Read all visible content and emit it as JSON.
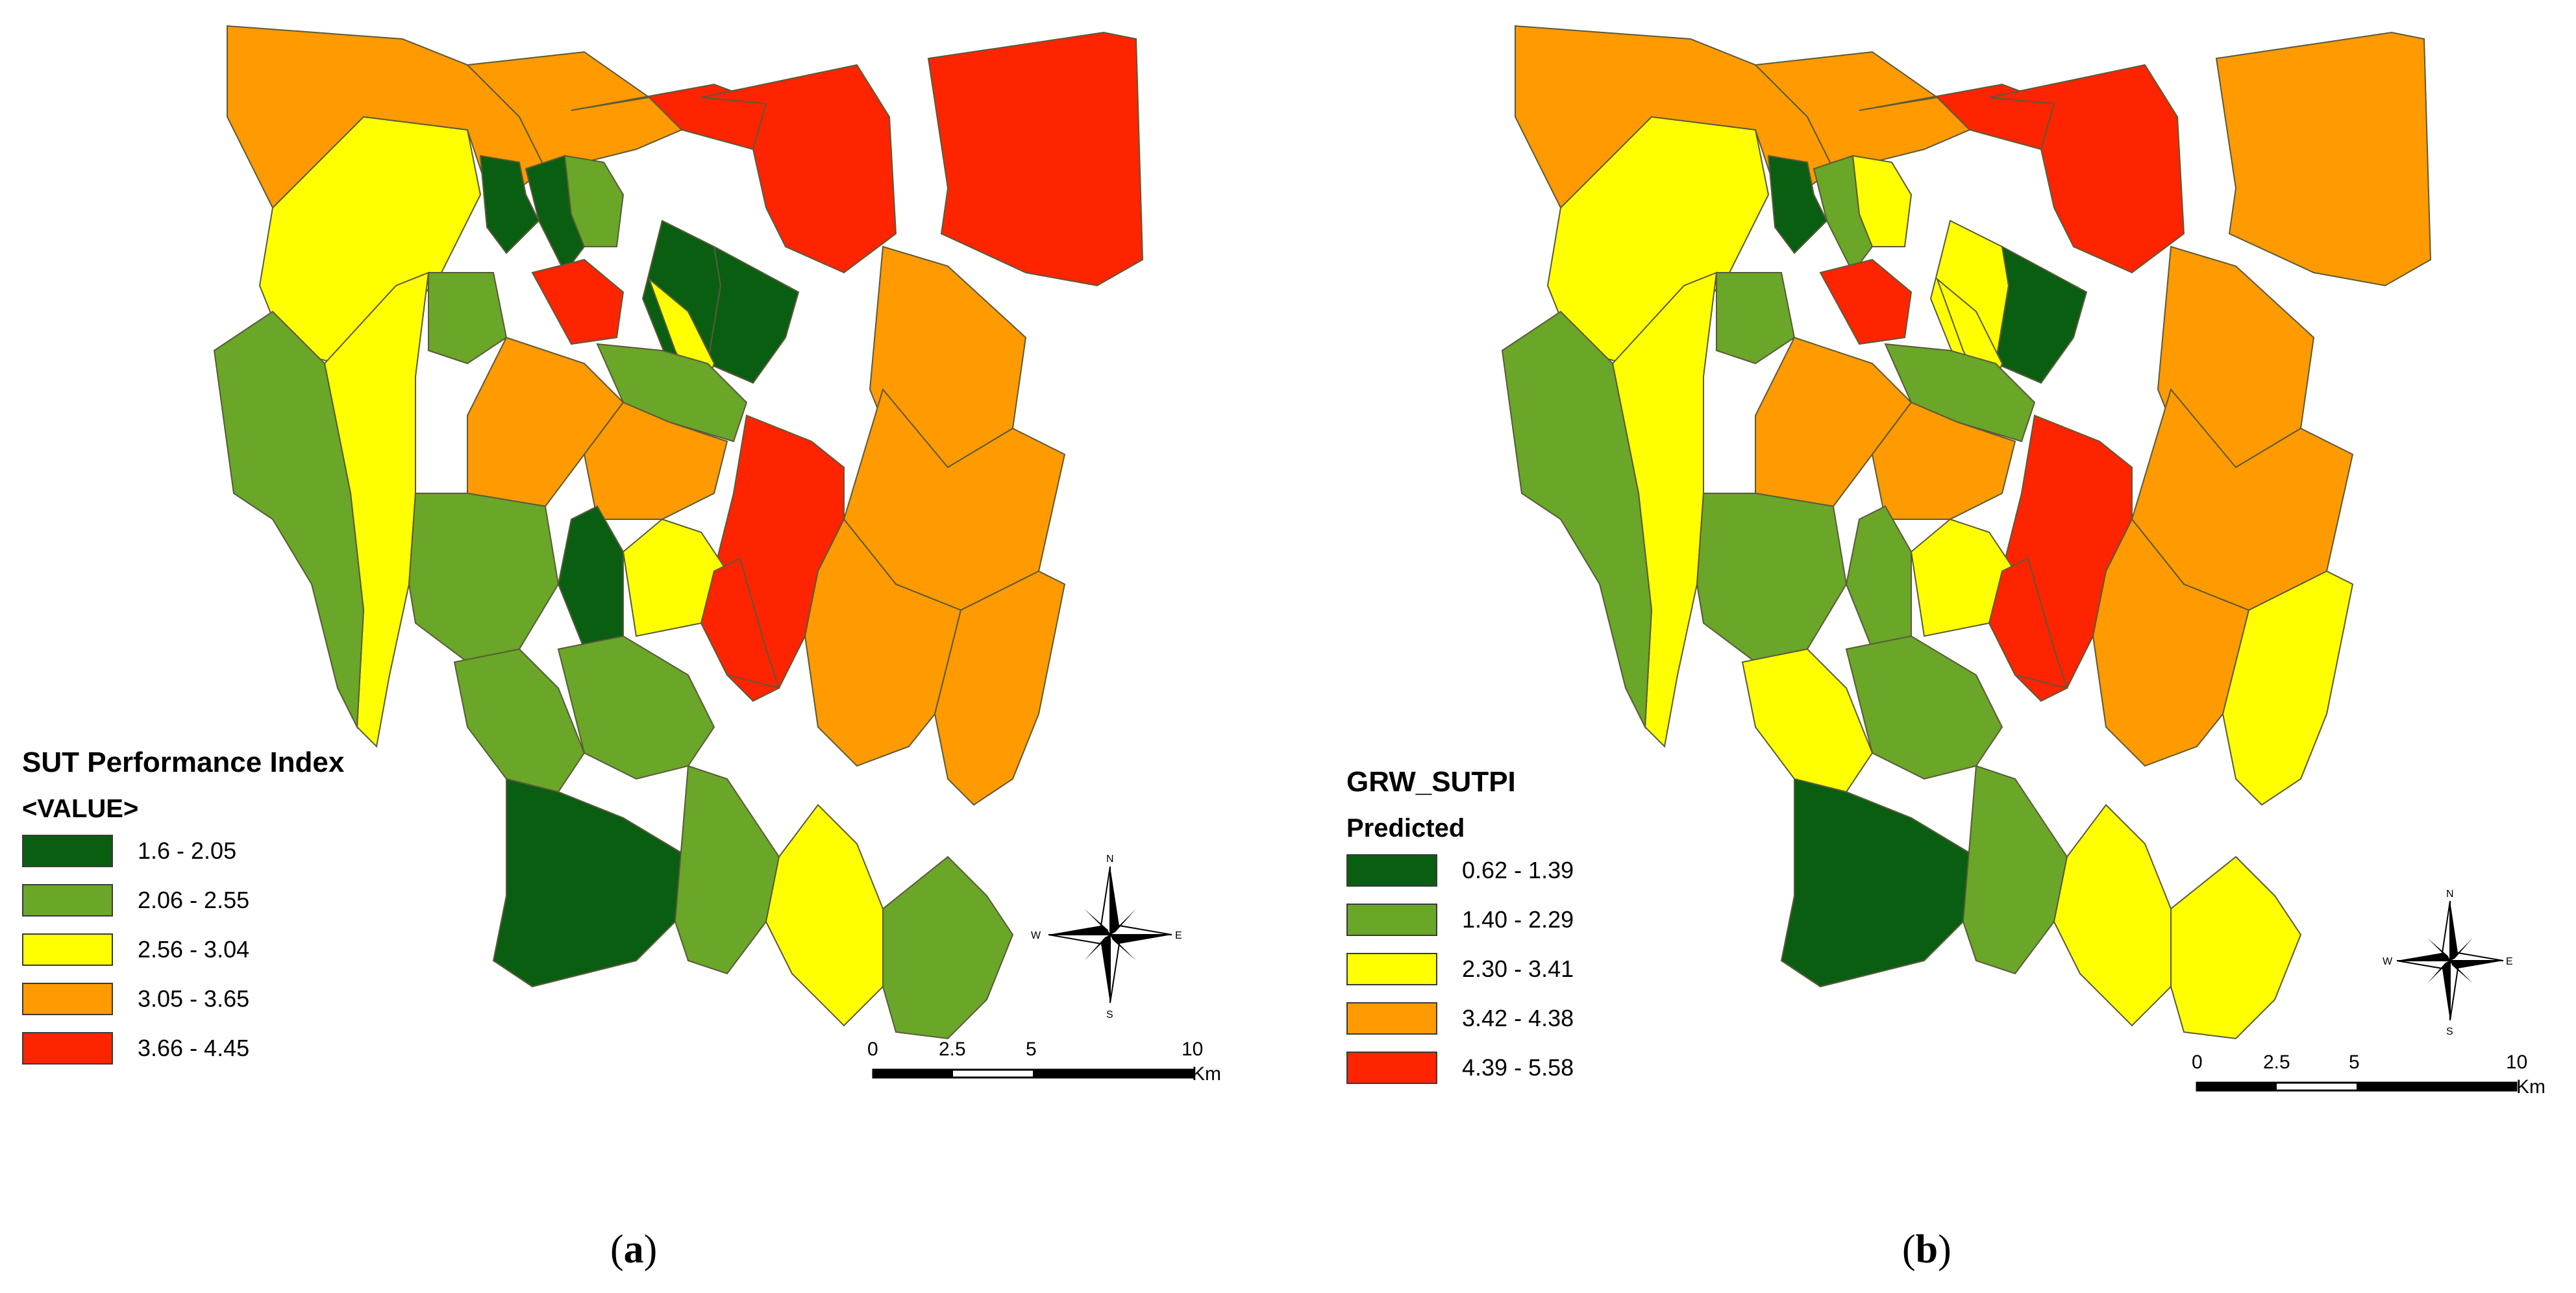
{
  "colors": {
    "class1": "#0a5e12",
    "class2": "#6aa628",
    "class3": "#ffff00",
    "class4": "#ff9a00",
    "class5": "#ff2400",
    "boundary": "#5a5a3a"
  },
  "panels": [
    {
      "caption": "(a)",
      "caption_open": "(",
      "caption_letter": "a",
      "caption_close": ")",
      "legend": {
        "title": "SUT Performance Index",
        "subtitle": "<VALUE>",
        "classes": [
          {
            "label": "1.6 - 2.05",
            "color_key": "class1"
          },
          {
            "label": "2.06 - 2.55",
            "color_key": "class2"
          },
          {
            "label": "2.56 - 3.04",
            "color_key": "class3"
          },
          {
            "label": "3.05 - 3.65",
            "color_key": "class4"
          },
          {
            "label": "3.66 - 4.45",
            "color_key": "class5"
          }
        ]
      },
      "compass": {
        "north": "N",
        "south": "S",
        "east": "E",
        "west": "W"
      },
      "scale_bar": {
        "ticks": [
          "0",
          "2.5",
          "5",
          "10"
        ],
        "unit": "Km"
      },
      "districts": [
        3,
        4,
        4,
        5,
        5,
        5,
        3,
        2,
        1,
        1,
        2,
        1,
        1,
        5,
        3,
        2,
        2,
        4,
        4,
        4,
        5,
        4,
        4,
        2,
        1,
        3,
        5,
        4,
        2,
        2,
        1,
        2,
        3,
        2
      ]
    },
    {
      "caption": "(b)",
      "caption_open": "(",
      "caption_letter": "b",
      "caption_close": ")",
      "legend": {
        "title": "GRW_SUTPI",
        "subtitle": "Predicted",
        "classes": [
          {
            "label": "0.62 - 1.39",
            "color_key": "class1"
          },
          {
            "label": "1.40 - 2.29",
            "color_key": "class2"
          },
          {
            "label": "2.30 - 3.41",
            "color_key": "class3"
          },
          {
            "label": "3.42 - 4.38",
            "color_key": "class4"
          },
          {
            "label": "4.39 - 5.58",
            "color_key": "class5"
          }
        ]
      },
      "compass": {
        "north": "N",
        "south": "S",
        "east": "E",
        "west": "W"
      },
      "scale_bar": {
        "ticks": [
          "0",
          "2.5",
          "5",
          "10"
        ],
        "unit": "Km"
      },
      "districts": [
        3,
        4,
        4,
        5,
        5,
        4,
        3,
        2,
        1,
        2,
        3,
        3,
        1,
        5,
        3,
        2,
        2,
        4,
        4,
        4,
        5,
        4,
        4,
        2,
        2,
        3,
        5,
        3,
        3,
        2,
        1,
        2,
        3,
        3
      ]
    }
  ]
}
